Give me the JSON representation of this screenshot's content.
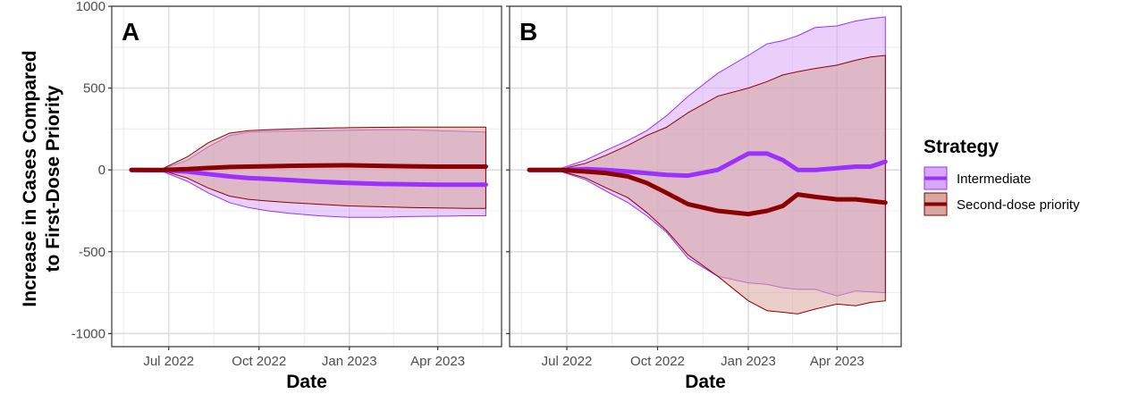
{
  "y_axis_title": [
    "Increase in Cases Compared",
    "to First-Dose Priority"
  ],
  "x_axis_title": "Date",
  "legend": {
    "title": "Strategy",
    "entries": [
      {
        "label": "Intermediate",
        "line_color": "#9b30ff",
        "fill_color": "#d7a8f5",
        "fill_border": "#9b30ff"
      },
      {
        "label": "Second-dose priority",
        "line_color": "#8b0000",
        "fill_color": "#d7a69f",
        "fill_border": "#8b0000"
      }
    ]
  },
  "chart_data": [
    {
      "type": "area",
      "panel": "A",
      "x_type": "date",
      "xlim": [
        "2022-05-04",
        "2023-06-05"
      ],
      "ylim": [
        -1080,
        1000
      ],
      "x_ticks": [
        {
          "date": "2022-07-01",
          "label": "Jul 2022"
        },
        {
          "date": "2022-10-01",
          "label": "Oct 2022"
        },
        {
          "date": "2023-01-01",
          "label": "Jan 2023"
        },
        {
          "date": "2023-04-01",
          "label": "Apr 2023"
        }
      ],
      "y_ticks": [
        1000,
        500,
        0,
        -500,
        -1000
      ],
      "grid": true,
      "series": [
        {
          "name": "Intermediate",
          "x": [
            "2022-05-24",
            "2022-06-25",
            "2022-07-20",
            "2022-08-10",
            "2022-09-01",
            "2022-09-20",
            "2022-10-10",
            "2022-11-01",
            "2022-12-01",
            "2023-01-01",
            "2023-02-01",
            "2023-03-01",
            "2023-04-01",
            "2023-05-01",
            "2023-05-20"
          ],
          "mean": [
            0,
            -2,
            -10,
            -25,
            -40,
            -50,
            -55,
            -62,
            -72,
            -80,
            -86,
            -88,
            -90,
            -90,
            -90
          ],
          "upper": [
            0,
            5,
            60,
            140,
            210,
            230,
            235,
            238,
            240,
            242,
            245,
            245,
            240,
            235,
            232
          ],
          "lower": [
            0,
            -10,
            -70,
            -140,
            -200,
            -230,
            -250,
            -265,
            -280,
            -290,
            -290,
            -285,
            -283,
            -280,
            -280
          ]
        },
        {
          "name": "Second-dose priority",
          "x": [
            "2022-05-24",
            "2022-06-25",
            "2022-07-20",
            "2022-08-10",
            "2022-09-01",
            "2022-09-20",
            "2022-10-10",
            "2022-11-01",
            "2022-12-01",
            "2023-01-01",
            "2023-02-01",
            "2023-03-01",
            "2023-04-01",
            "2023-05-01",
            "2023-05-20"
          ],
          "mean": [
            0,
            0,
            5,
            12,
            18,
            20,
            22,
            25,
            27,
            28,
            25,
            22,
            20,
            20,
            20
          ],
          "upper": [
            0,
            8,
            80,
            165,
            225,
            240,
            245,
            250,
            255,
            258,
            260,
            262,
            262,
            262,
            262
          ],
          "lower": [
            0,
            -5,
            -50,
            -110,
            -160,
            -180,
            -190,
            -200,
            -210,
            -220,
            -225,
            -230,
            -232,
            -235,
            -235
          ]
        }
      ]
    },
    {
      "type": "area",
      "panel": "B",
      "x_type": "date",
      "xlim": [
        "2022-05-04",
        "2023-06-05"
      ],
      "ylim": [
        -1080,
        1000
      ],
      "x_ticks": [
        {
          "date": "2022-07-01",
          "label": "Jul 2022"
        },
        {
          "date": "2022-10-01",
          "label": "Oct 2022"
        },
        {
          "date": "2023-01-01",
          "label": "Jan 2023"
        },
        {
          "date": "2023-04-01",
          "label": "Apr 2023"
        }
      ],
      "y_ticks": [
        1000,
        500,
        0,
        -500,
        -1000
      ],
      "grid": true,
      "series": [
        {
          "name": "Intermediate",
          "x": [
            "2022-05-24",
            "2022-06-25",
            "2022-07-20",
            "2022-08-10",
            "2022-09-01",
            "2022-09-20",
            "2022-10-10",
            "2022-11-01",
            "2022-12-01",
            "2023-01-01",
            "2023-01-20",
            "2023-02-05",
            "2023-02-20",
            "2023-03-10",
            "2023-04-01",
            "2023-04-20",
            "2023-05-05",
            "2023-05-20"
          ],
          "mean": [
            0,
            0,
            5,
            0,
            -10,
            -20,
            -30,
            -35,
            0,
            100,
            100,
            60,
            0,
            0,
            10,
            20,
            20,
            50
          ],
          "upper": [
            0,
            10,
            60,
            120,
            180,
            240,
            330,
            450,
            590,
            700,
            770,
            790,
            820,
            870,
            880,
            910,
            925,
            935
          ],
          "lower": [
            0,
            -10,
            -60,
            -130,
            -200,
            -280,
            -380,
            -540,
            -650,
            -690,
            -700,
            -720,
            -730,
            -730,
            -770,
            -740,
            -745,
            -750
          ]
        },
        {
          "name": "Second-dose priority",
          "x": [
            "2022-05-24",
            "2022-06-25",
            "2022-07-20",
            "2022-08-10",
            "2022-09-01",
            "2022-09-20",
            "2022-10-10",
            "2022-11-01",
            "2022-12-01",
            "2023-01-01",
            "2023-01-20",
            "2023-02-05",
            "2023-02-20",
            "2023-03-10",
            "2023-04-01",
            "2023-04-20",
            "2023-05-05",
            "2023-05-20"
          ],
          "mean": [
            0,
            0,
            -10,
            -20,
            -40,
            -80,
            -140,
            -210,
            -250,
            -270,
            -250,
            -220,
            -150,
            -165,
            -180,
            -180,
            -190,
            -200
          ],
          "upper": [
            0,
            5,
            40,
            90,
            150,
            210,
            260,
            350,
            450,
            500,
            540,
            580,
            600,
            620,
            640,
            670,
            690,
            700
          ],
          "lower": [
            0,
            -8,
            -50,
            -110,
            -170,
            -260,
            -370,
            -520,
            -650,
            -800,
            -860,
            -870,
            -880,
            -850,
            -820,
            -830,
            -810,
            -800
          ]
        }
      ]
    }
  ]
}
